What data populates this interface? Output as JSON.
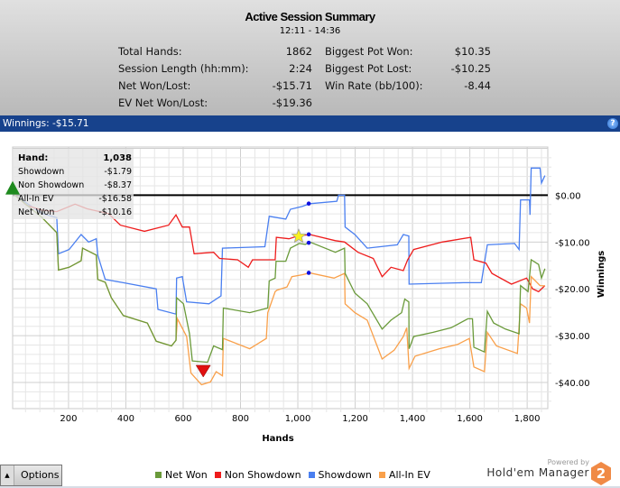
{
  "header": {
    "title": "Active Session Summary",
    "time_range": "12:11 - 14:36",
    "stats_left": [
      {
        "label": "Total Hands:",
        "value": "1862"
      },
      {
        "label": "Session Length (hh:mm):",
        "value": "2:24"
      },
      {
        "label": "Net Won/Lost:",
        "value": "-$15.71"
      },
      {
        "label": "EV Net Won/Lost:",
        "value": "-$19.36"
      }
    ],
    "stats_right": [
      {
        "label": "Biggest Pot Won:",
        "value": "$10.35"
      },
      {
        "label": "Biggest Pot Lost:",
        "value": "-$10.25"
      },
      {
        "label": "Win Rate (bb/100):",
        "value": "-8.44"
      }
    ]
  },
  "bar": {
    "label": "Winnings: -$15.71",
    "help_icon": "help-icon",
    "help": "?"
  },
  "tooltip": {
    "hand_label": "Hand:",
    "hand_value": "1,038",
    "rows": [
      {
        "label": "Showdown",
        "value": "-$1.79"
      },
      {
        "label": "Non Showdown",
        "value": "-$8.37"
      },
      {
        "label": "All-In EV",
        "value": "-$16.58"
      },
      {
        "label": "Net Won",
        "value": "-$10.16"
      }
    ]
  },
  "chart_data": {
    "type": "line",
    "xlabel": "Hands",
    "ylabel": "Winnings",
    "xlim": [
      5,
      1872
    ],
    "ylim": [
      -45.6,
      10.3
    ],
    "xticks": [
      {
        "v": 200,
        "label": "200"
      },
      {
        "v": 400,
        "label": "400"
      },
      {
        "v": 600,
        "label": "600"
      },
      {
        "v": 800,
        "label": "800"
      },
      {
        "v": 1000,
        "label": "1,000"
      },
      {
        "v": 1200,
        "label": "1,200"
      },
      {
        "v": 1400,
        "label": "1,400"
      },
      {
        "v": 1600,
        "label": "1,600"
      },
      {
        "v": 1800,
        "label": "1,800"
      }
    ],
    "yticks": [
      {
        "v": 0,
        "label": "$0.00"
      },
      {
        "v": -10,
        "label": "-$10.00"
      },
      {
        "v": -20,
        "label": "-$20.00"
      },
      {
        "v": -30,
        "label": "-$30.00"
      },
      {
        "v": -40,
        "label": "-$40.00"
      }
    ],
    "grid": true,
    "legend_position": "bottom",
    "series": [
      {
        "name": "Net Won",
        "color": "#6a9a3a",
        "points": [
          [
            13,
            0
          ],
          [
            108,
            -4.8
          ],
          [
            159,
            -8
          ],
          [
            165,
            -16
          ],
          [
            202,
            -15.4
          ],
          [
            244,
            -14
          ],
          [
            249,
            -11.3
          ],
          [
            297,
            -12.8
          ],
          [
            302,
            -18
          ],
          [
            328,
            -18.6
          ],
          [
            349,
            -21.9
          ],
          [
            391,
            -25.7
          ],
          [
            475,
            -27.3
          ],
          [
            506,
            -31.2
          ],
          [
            559,
            -32.2
          ],
          [
            575,
            -31
          ],
          [
            577,
            -21.9
          ],
          [
            601,
            -23.2
          ],
          [
            622,
            -29.6
          ],
          [
            632,
            -35.4
          ],
          [
            685,
            -35.7
          ],
          [
            706,
            -32.2
          ],
          [
            737,
            -33
          ],
          [
            740,
            -24.1
          ],
          [
            832,
            -25.1
          ],
          [
            895,
            -24.1
          ],
          [
            900,
            -18.3
          ],
          [
            921,
            -17.7
          ],
          [
            924,
            -14.1
          ],
          [
            958,
            -14.1
          ],
          [
            974,
            -11.3
          ],
          [
            1005,
            -10.3
          ],
          [
            1026,
            -10.5
          ],
          [
            1042,
            -10
          ],
          [
            1131,
            -12.2
          ],
          [
            1163,
            -11.3
          ],
          [
            1165,
            -16.7
          ],
          [
            1199,
            -20.9
          ],
          [
            1242,
            -23.2
          ],
          [
            1294,
            -28.6
          ],
          [
            1325,
            -26.7
          ],
          [
            1362,
            -25.1
          ],
          [
            1373,
            -22.2
          ],
          [
            1387,
            -22.8
          ],
          [
            1388,
            -32.8
          ],
          [
            1404,
            -30.2
          ],
          [
            1472,
            -29.3
          ],
          [
            1535,
            -28.3
          ],
          [
            1593,
            -26.4
          ],
          [
            1609,
            -26.4
          ],
          [
            1614,
            -32.5
          ],
          [
            1651,
            -33.5
          ],
          [
            1661,
            -24.8
          ],
          [
            1683,
            -27.3
          ],
          [
            1724,
            -28.6
          ],
          [
            1772,
            -29.6
          ],
          [
            1777,
            -19.3
          ],
          [
            1803,
            -20.6
          ],
          [
            1814,
            -13.8
          ],
          [
            1840,
            -14.8
          ],
          [
            1850,
            -17.7
          ],
          [
            1862,
            -15.71
          ]
        ]
      },
      {
        "name": "Non Showdown",
        "color": "#ee1c1c",
        "points": [
          [
            13,
            0
          ],
          [
            55,
            -2.2
          ],
          [
            108,
            -3.2
          ],
          [
            159,
            -3.5
          ],
          [
            223,
            -1.9
          ],
          [
            265,
            -2.9
          ],
          [
            339,
            -3.9
          ],
          [
            381,
            -6.4
          ],
          [
            465,
            -7.7
          ],
          [
            549,
            -6.4
          ],
          [
            575,
            -4.2
          ],
          [
            597,
            -6.8
          ],
          [
            622,
            -6.8
          ],
          [
            638,
            -12.5
          ],
          [
            706,
            -12.2
          ],
          [
            727,
            -13.5
          ],
          [
            790,
            -13.8
          ],
          [
            827,
            -15.4
          ],
          [
            842,
            -13.8
          ],
          [
            921,
            -13.8
          ],
          [
            925,
            -9
          ],
          [
            969,
            -9.3
          ],
          [
            1000,
            -8.7
          ],
          [
            1042,
            -8.4
          ],
          [
            1131,
            -9.7
          ],
          [
            1163,
            -10
          ],
          [
            1210,
            -12.2
          ],
          [
            1263,
            -13.5
          ],
          [
            1294,
            -17.4
          ],
          [
            1325,
            -15.4
          ],
          [
            1368,
            -16.1
          ],
          [
            1383,
            -13.8
          ],
          [
            1404,
            -11.6
          ],
          [
            1504,
            -10
          ],
          [
            1603,
            -9
          ],
          [
            1614,
            -13.8
          ],
          [
            1656,
            -14.5
          ],
          [
            1677,
            -16.7
          ],
          [
            1745,
            -19
          ],
          [
            1798,
            -17.7
          ],
          [
            1819,
            -20
          ],
          [
            1840,
            -20.6
          ],
          [
            1862,
            -19.3
          ]
        ]
      },
      {
        "name": "Showdown",
        "color": "#4a7ff0",
        "points": [
          [
            13,
            0
          ],
          [
            108,
            -3.9
          ],
          [
            159,
            -4.8
          ],
          [
            165,
            -12.5
          ],
          [
            202,
            -11.6
          ],
          [
            244,
            -8.4
          ],
          [
            270,
            -10
          ],
          [
            297,
            -9.3
          ],
          [
            302,
            -12.8
          ],
          [
            328,
            -18
          ],
          [
            391,
            -18.7
          ],
          [
            506,
            -20
          ],
          [
            512,
            -24.4
          ],
          [
            575,
            -25.4
          ],
          [
            577,
            -17.7
          ],
          [
            597,
            -17.4
          ],
          [
            612,
            -22.8
          ],
          [
            690,
            -23.2
          ],
          [
            732,
            -21.5
          ],
          [
            737,
            -11.3
          ],
          [
            885,
            -11
          ],
          [
            900,
            -4.5
          ],
          [
            958,
            -5.1
          ],
          [
            974,
            -3
          ],
          [
            1015,
            -2.4
          ],
          [
            1042,
            -1.8
          ],
          [
            1136,
            -1.3
          ],
          [
            1142,
            0
          ],
          [
            1163,
            0
          ],
          [
            1165,
            -6.8
          ],
          [
            1199,
            -8.4
          ],
          [
            1242,
            -11.3
          ],
          [
            1347,
            -10.6
          ],
          [
            1368,
            -8.4
          ],
          [
            1387,
            -8.7
          ],
          [
            1388,
            -19
          ],
          [
            1577,
            -18.7
          ],
          [
            1640,
            -18.7
          ],
          [
            1661,
            -10.6
          ],
          [
            1756,
            -10.3
          ],
          [
            1772,
            -11.6
          ],
          [
            1777,
            -1
          ],
          [
            1808,
            -1
          ],
          [
            1810,
            -4.2
          ],
          [
            1814,
            5.8
          ],
          [
            1845,
            5.8
          ],
          [
            1850,
            2.6
          ],
          [
            1862,
            4.2
          ]
        ]
      },
      {
        "name": "All-In EV",
        "color": "#f9a04a",
        "points": [
          [
            13,
            0
          ],
          [
            108,
            -4.8
          ],
          [
            159,
            -8
          ],
          [
            165,
            -16
          ],
          [
            202,
            -15.4
          ],
          [
            244,
            -14
          ],
          [
            249,
            -11.3
          ],
          [
            297,
            -12.8
          ],
          [
            302,
            -18
          ],
          [
            328,
            -18.6
          ],
          [
            349,
            -21.9
          ],
          [
            391,
            -25.7
          ],
          [
            475,
            -27.3
          ],
          [
            506,
            -31.2
          ],
          [
            559,
            -32.2
          ],
          [
            575,
            -31
          ],
          [
            580,
            -26.4
          ],
          [
            612,
            -30.2
          ],
          [
            627,
            -38
          ],
          [
            664,
            -40.5
          ],
          [
            695,
            -39.9
          ],
          [
            715,
            -37.7
          ],
          [
            737,
            -38.6
          ],
          [
            740,
            -30.6
          ],
          [
            832,
            -32.8
          ],
          [
            890,
            -30.6
          ],
          [
            895,
            -25.1
          ],
          [
            921,
            -20.6
          ],
          [
            927,
            -20.3
          ],
          [
            962,
            -19.6
          ],
          [
            979,
            -17.4
          ],
          [
            1015,
            -17
          ],
          [
            1042,
            -16.6
          ],
          [
            1126,
            -17.7
          ],
          [
            1163,
            -16.7
          ],
          [
            1165,
            -23.2
          ],
          [
            1199,
            -25.1
          ],
          [
            1242,
            -26.7
          ],
          [
            1294,
            -35
          ],
          [
            1336,
            -33.1
          ],
          [
            1368,
            -30.2
          ],
          [
            1380,
            -28.3
          ],
          [
            1388,
            -37
          ],
          [
            1409,
            -34.4
          ],
          [
            1494,
            -32.8
          ],
          [
            1557,
            -31.9
          ],
          [
            1598,
            -30.6
          ],
          [
            1614,
            -36.7
          ],
          [
            1651,
            -37.7
          ],
          [
            1661,
            -29.3
          ],
          [
            1693,
            -32.2
          ],
          [
            1766,
            -33.8
          ],
          [
            1777,
            -23.2
          ],
          [
            1798,
            -24.1
          ],
          [
            1808,
            -27.3
          ],
          [
            1814,
            -17.4
          ],
          [
            1845,
            -19.3
          ],
          [
            1862,
            -19.36
          ]
        ]
      }
    ],
    "markers": [
      {
        "type": "triangle-up",
        "color": "#1e8a1e",
        "x": 5,
        "y": 1.5
      },
      {
        "type": "triangle-down",
        "color": "#e01010",
        "x": 670,
        "y": -37.5
      },
      {
        "type": "star",
        "color": "#f8f020",
        "x": 1003,
        "y": -8.8
      },
      {
        "type": "dot",
        "color": "#1010e0",
        "x": 1038,
        "y": -1.79
      },
      {
        "type": "dot",
        "color": "#1010e0",
        "x": 1038,
        "y": -8.37
      },
      {
        "type": "dot",
        "color": "#1010e0",
        "x": 1038,
        "y": -10.16
      },
      {
        "type": "dot",
        "color": "#1010e0",
        "x": 1038,
        "y": -16.58
      }
    ]
  },
  "footer": {
    "options_label": "Options",
    "legend": [
      {
        "label": "Net Won",
        "color": "#6a9a3a"
      },
      {
        "label": "Non Showdown",
        "color": "#ee1c1c"
      },
      {
        "label": "Showdown",
        "color": "#4a7ff0"
      },
      {
        "label": "All-In EV",
        "color": "#f9a04a"
      }
    ],
    "powered_by": "Powered by",
    "brand": "Hold'em Manager",
    "brand_badge": "2"
  }
}
